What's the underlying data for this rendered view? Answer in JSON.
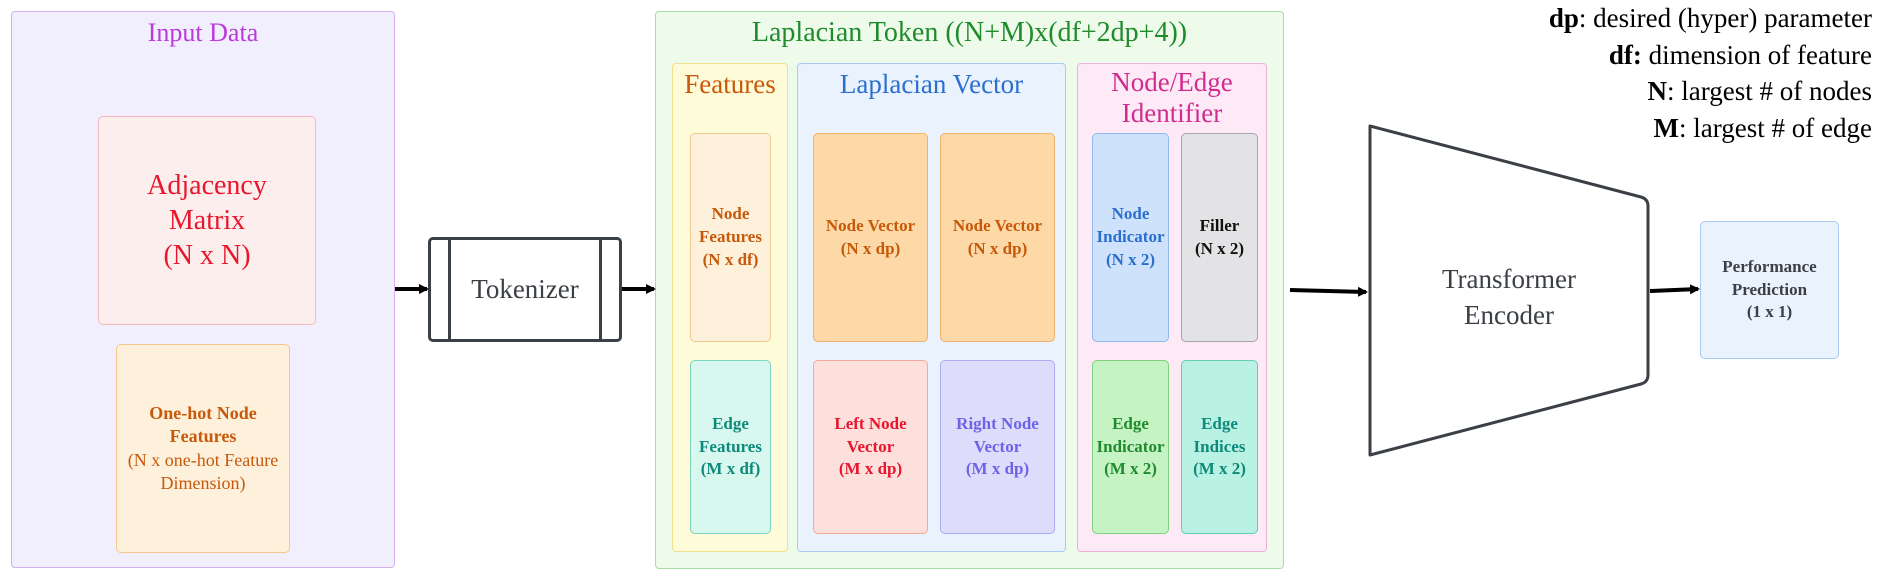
{
  "input_data": {
    "title": "Input Data",
    "adjacency": {
      "name": "Adjacency Matrix",
      "line1": "Adjacency",
      "line2": "Matrix",
      "dims": "(N x N)"
    },
    "onehot": {
      "line1": "One-hot Node",
      "line2": "Features",
      "dims_line1": "(N x one-hot Feature",
      "dims_line2": "Dimension)"
    }
  },
  "tokenizer": {
    "label": "Tokenizer"
  },
  "laplacian_token": {
    "title": "Laplacian Token ((N+M)x(df+2dp+4))",
    "features": {
      "title": "Features",
      "node": {
        "line1": "Node",
        "line2": "Features",
        "dims": "(N x df)"
      },
      "edge": {
        "line1": "Edge",
        "line2": "Features",
        "dims": "(M x df)"
      }
    },
    "laplacian_vector": {
      "title": "Laplacian Vector",
      "node_vector_1": {
        "label": "Node Vector",
        "dims": "(N x dp)"
      },
      "node_vector_2": {
        "label": "Node Vector",
        "dims": "(N x dp)"
      },
      "left_node": {
        "line1": "Left Node",
        "line2": "Vector",
        "dims": "(M x dp)"
      },
      "right_node": {
        "line1": "Right Node",
        "line2": "Vector",
        "dims": "(M x dp)"
      }
    },
    "identifier": {
      "title_line1": "Node/Edge",
      "title_line2": "Identifier",
      "node_indicator": {
        "line1": "Node",
        "line2": "Indicator",
        "dims": "(N x 2)"
      },
      "filler": {
        "label": "Filler",
        "dims": "(N x 2)"
      },
      "edge_indicator": {
        "line1": "Edge",
        "line2": "Indicator",
        "dims": "(M x 2)"
      },
      "edge_indices": {
        "line1": "Edge",
        "line2": "Indices",
        "dims": "(M x 2)"
      }
    }
  },
  "encoder": {
    "line1": "Transformer",
    "line2": "Encoder"
  },
  "output": {
    "line1": "Performance",
    "line2": "Prediction",
    "dims": "(1 x 1)"
  },
  "legend": [
    {
      "term": "dp",
      "sep": ":",
      "desc": " desired (hyper) parameter"
    },
    {
      "term": "df:",
      "sep": "",
      "desc": " dimension of feature"
    },
    {
      "term": "N",
      "sep": ":",
      "desc": " largest # of nodes"
    },
    {
      "term": "M",
      "sep": ":",
      "desc": " largest # of edge"
    }
  ],
  "colors": {
    "purple": "#b93bd8",
    "red": "#e8162d",
    "orange": "#c8580a",
    "green": "#1f8b2c",
    "blue": "#2a6fcf",
    "magenta": "#d02c8f",
    "teal": "#0e8a7b",
    "violet": "#6c63e6"
  }
}
